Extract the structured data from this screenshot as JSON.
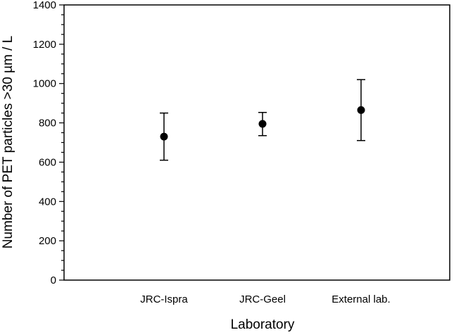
{
  "chart_data": {
    "type": "scatter",
    "xlabel": "Laboratory",
    "ylabel": "Number of PET particles >30 µm / L",
    "categories": [
      "JRC-Ispra",
      "JRC-Geel",
      "External lab."
    ],
    "series": [
      {
        "values": [
          730,
          795,
          865
        ],
        "error_low": [
          610,
          735,
          710
        ],
        "error_high": [
          850,
          853,
          1020
        ]
      }
    ],
    "ylim": [
      0,
      1400
    ],
    "y_ticks": [
      0,
      200,
      400,
      600,
      800,
      1000,
      1200,
      1400
    ],
    "y_minor_step": 50,
    "grid": false,
    "legend": "none",
    "colors": {
      "axis": "#000000",
      "marker": "#000000"
    }
  }
}
